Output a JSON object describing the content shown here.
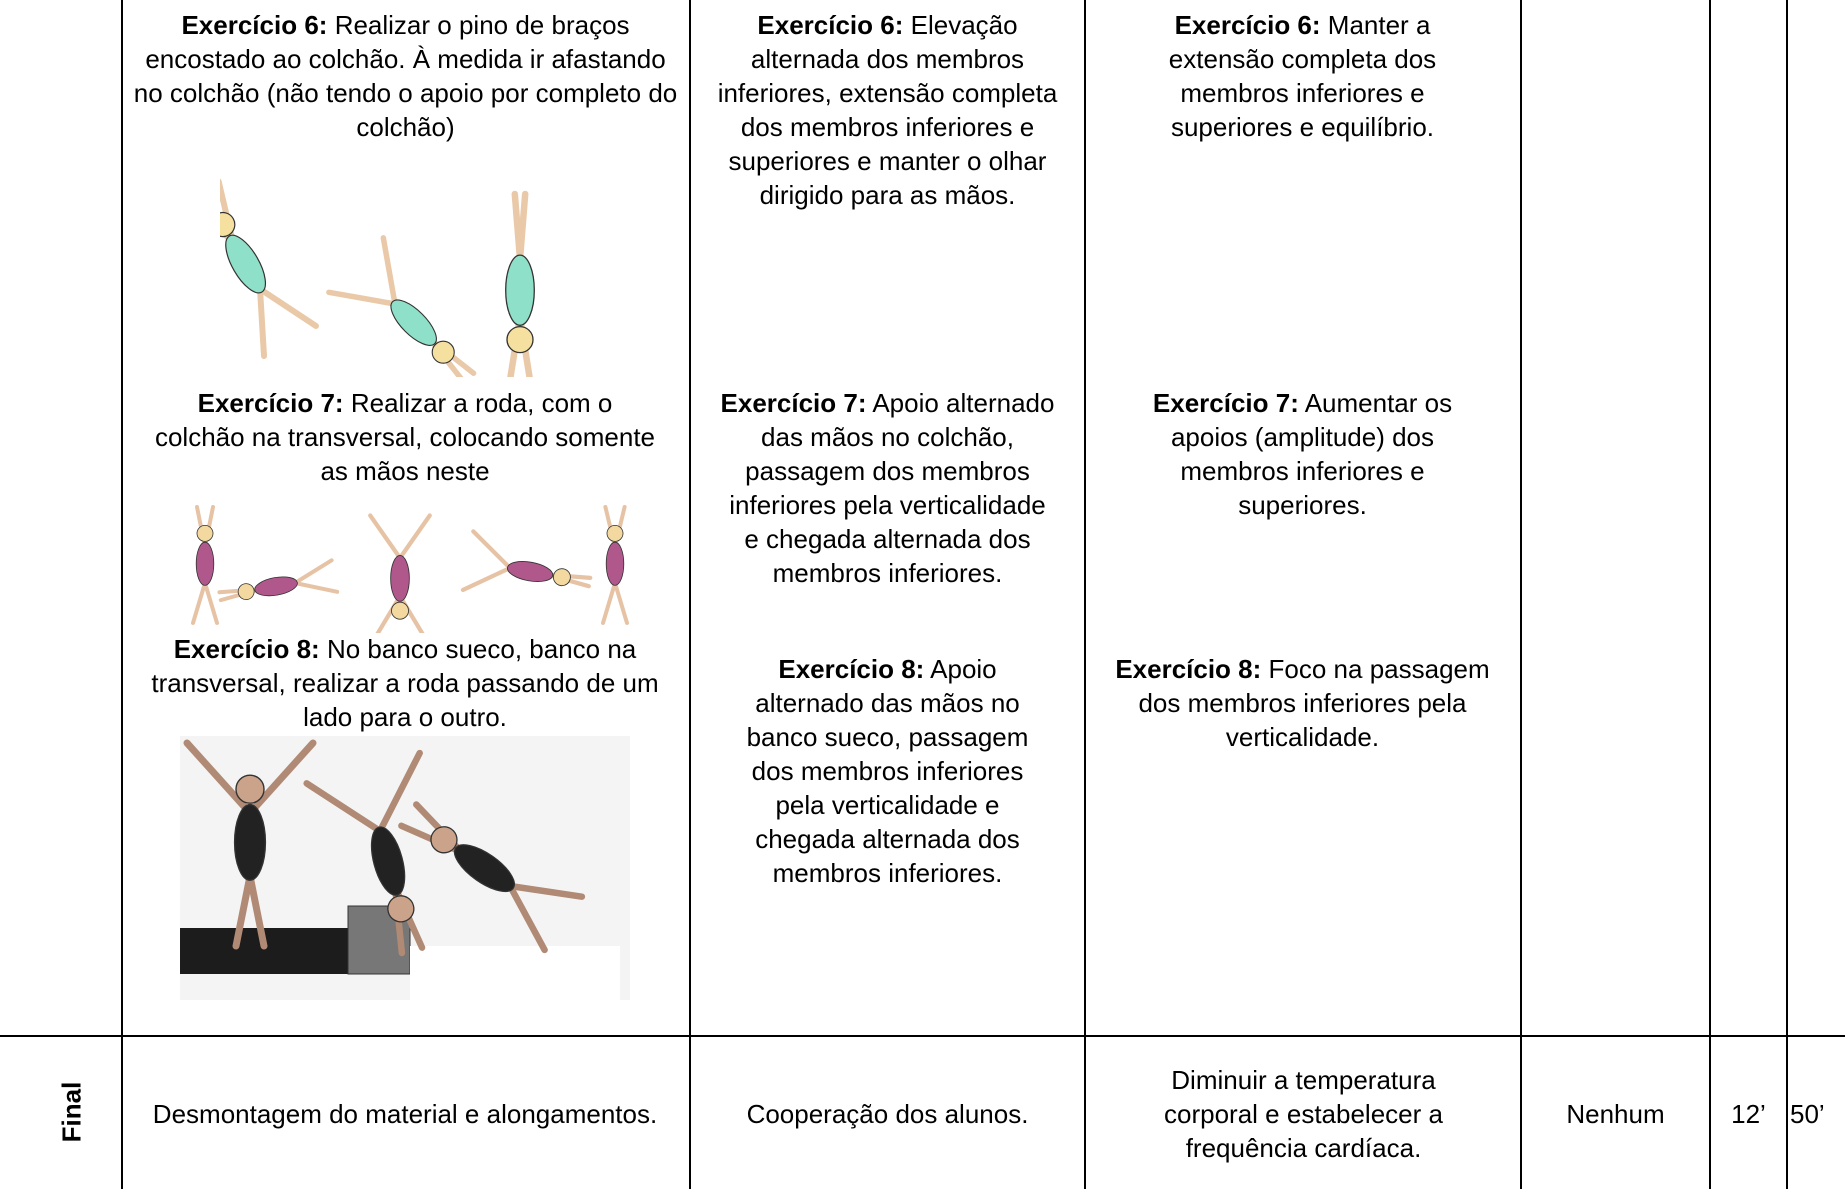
{
  "table": {
    "rows": [
      {
        "tasks": [
          {
            "label": "Exercício 6:",
            "text": "Realizar o pino de braços encostado ao colchão. À medida ir afastando no colchão (não tendo o apoio por completo do colchão)"
          },
          {
            "label": "Exercício 7:",
            "text": "Realizar a roda, com o colchão na transversal, colocando somente as mãos neste"
          },
          {
            "label": "Exercício 8:",
            "text": "No banco sueco, banco na transversal, realizar a roda passando de um lado para o outro."
          }
        ],
        "criteria": [
          {
            "label": "Exercício 6:",
            "text": "Elevação alternada dos membros inferiores, extensão completa dos membros inferiores e superiores e manter o olhar dirigido para as mãos."
          },
          {
            "label": "Exercício 7:",
            "text": "Apoio alternado das mãos no colchão, passagem dos membros inferiores pela verticalidade e chegada alternada dos membros inferiores."
          },
          {
            "label": "Exercício 8:",
            "text": "Apoio alternado das mãos no banco sueco, passagem dos membros inferiores pela verticalidade e chegada alternada dos membros inferiores."
          }
        ],
        "objectives": [
          {
            "label": "Exercício 6:",
            "text": "Manter a extensão completa dos membros inferiores e superiores e equilíbrio."
          },
          {
            "label": "Exercício 7:",
            "text": "Aumentar os apoios (amplitude) dos membros inferiores e superiores."
          },
          {
            "label": "Exercício 8:",
            "text": "Foco na passagem dos membros inferiores pela verticalidade."
          }
        ]
      },
      {
        "phase": "Final",
        "task": "Desmontagem do material e alongamentos.",
        "criteria": "Cooperação dos alunos.",
        "objectives": "Diminuir a temperatura corporal e estabelecer a frequência cardíaca.",
        "material": "Nenhum",
        "time": "12’",
        "total": "50’"
      }
    ]
  }
}
